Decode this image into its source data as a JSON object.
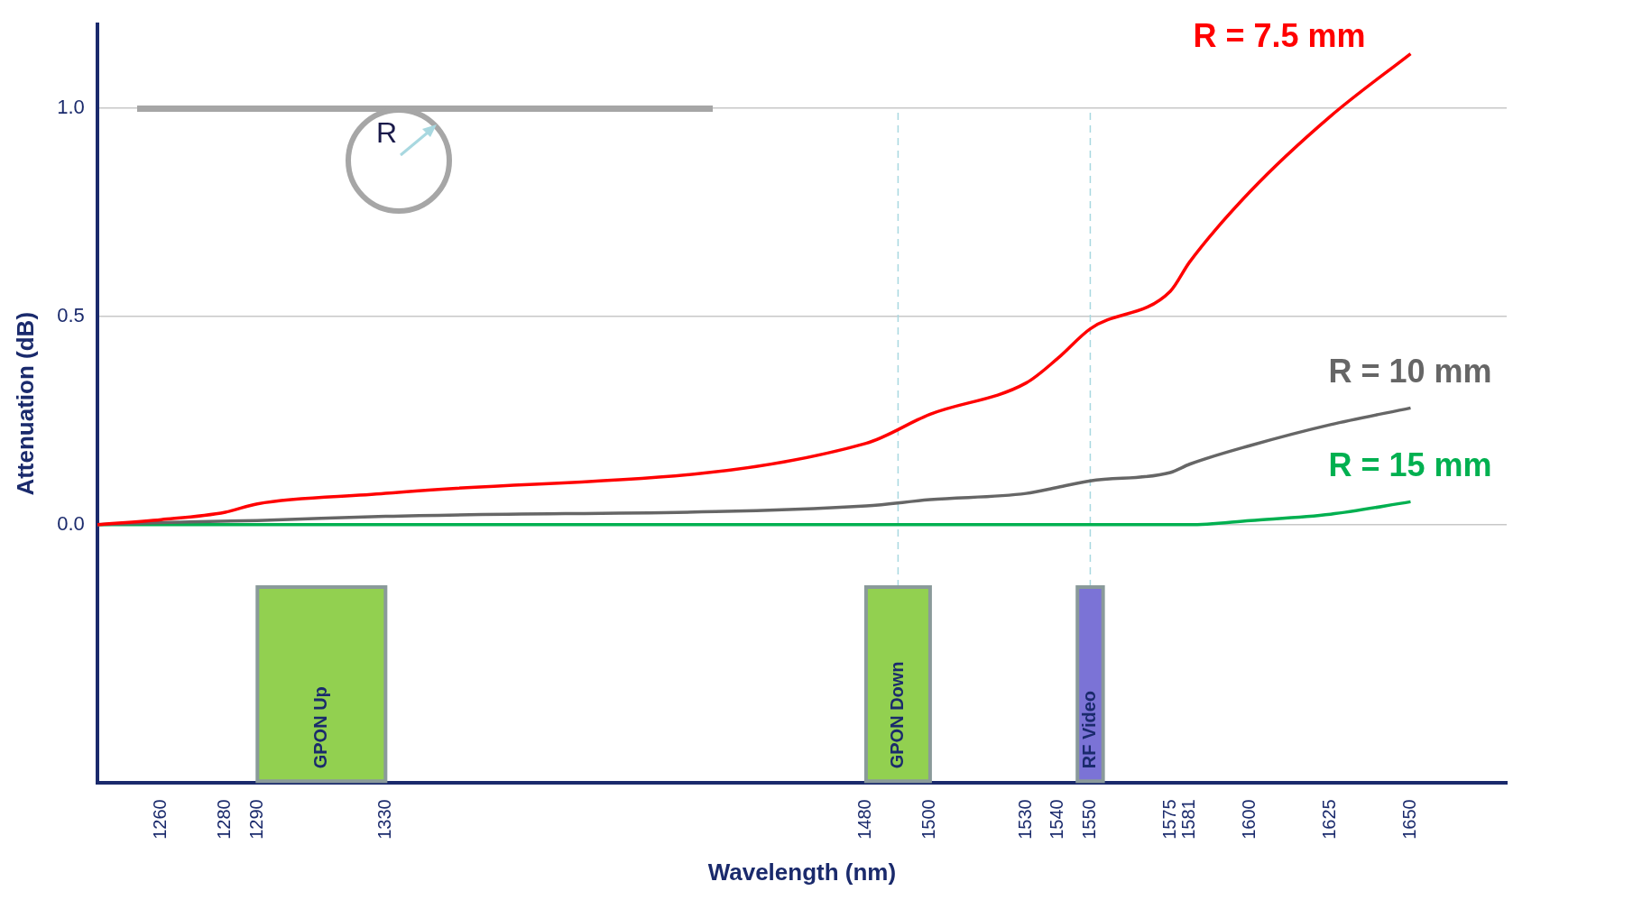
{
  "chart_data": {
    "type": "line",
    "xlabel": "Wavelength (nm)",
    "ylabel": "Attenuation (dB)",
    "xlim": [
      1240,
      1680
    ],
    "xticks": [
      1260,
      1280,
      1290,
      1330,
      1480,
      1500,
      1530,
      1540,
      1550,
      1575,
      1581,
      1600,
      1625,
      1650
    ],
    "ylim": [
      -0.62,
      1.2
    ],
    "yticks": [
      {
        "value": 0,
        "label": "0.0"
      },
      0.5,
      {
        "value": 1,
        "label": "1.0"
      }
    ],
    "grid": "y",
    "legend": false,
    "marker": "none",
    "series": [
      {
        "name": "R = 7.5 mm",
        "color": "#ff0000",
        "x": [
          1240,
          1260,
          1280,
          1290,
          1330,
          1480,
          1500,
          1530,
          1540,
          1550,
          1575,
          1581,
          1600,
          1625,
          1650
        ],
        "values": [
          0,
          0.012,
          0.03,
          0.05,
          0.075,
          0.195,
          0.265,
          0.34,
          0.4,
          0.47,
          0.56,
          0.63,
          0.8,
          0.98,
          1.13
        ]
      },
      {
        "name": "R = 10 mm",
        "color": "#666666",
        "x": [
          1240,
          1260,
          1290,
          1330,
          1480,
          1500,
          1530,
          1540,
          1550,
          1575,
          1581,
          1600,
          1625,
          1650
        ],
        "values": [
          0,
          0.005,
          0.01,
          0.02,
          0.045,
          0.06,
          0.075,
          0.09,
          0.105,
          0.125,
          0.145,
          0.19,
          0.24,
          0.28
        ]
      },
      {
        "name": "R = 15 mm",
        "color": "#00b050",
        "x": [
          1240,
          1330,
          1480,
          1550,
          1581,
          1600,
          1625,
          1650
        ],
        "values": [
          0,
          0,
          0,
          0,
          0,
          0.01,
          0.025,
          0.055
        ]
      }
    ],
    "bands": [
      {
        "axis": "x",
        "from": 1290,
        "to": 1330,
        "label": "GPON Up",
        "color": "#92d050"
      },
      {
        "axis": "x",
        "from": 1480,
        "to": 1500,
        "label": "GPON Down",
        "color": "#92d050"
      },
      {
        "axis": "x",
        "from": 1546,
        "to": 1554,
        "label": "RF Video",
        "color": "#7b73d6"
      }
    ],
    "ref_lines": [
      {
        "axis": "x",
        "value": 1490,
        "color": "#a8d8e0",
        "line_style": "dashed"
      },
      {
        "axis": "x",
        "value": 1550,
        "color": "#a8d8e0",
        "line_style": "dashed"
      }
    ],
    "annotations": [
      "R"
    ]
  }
}
